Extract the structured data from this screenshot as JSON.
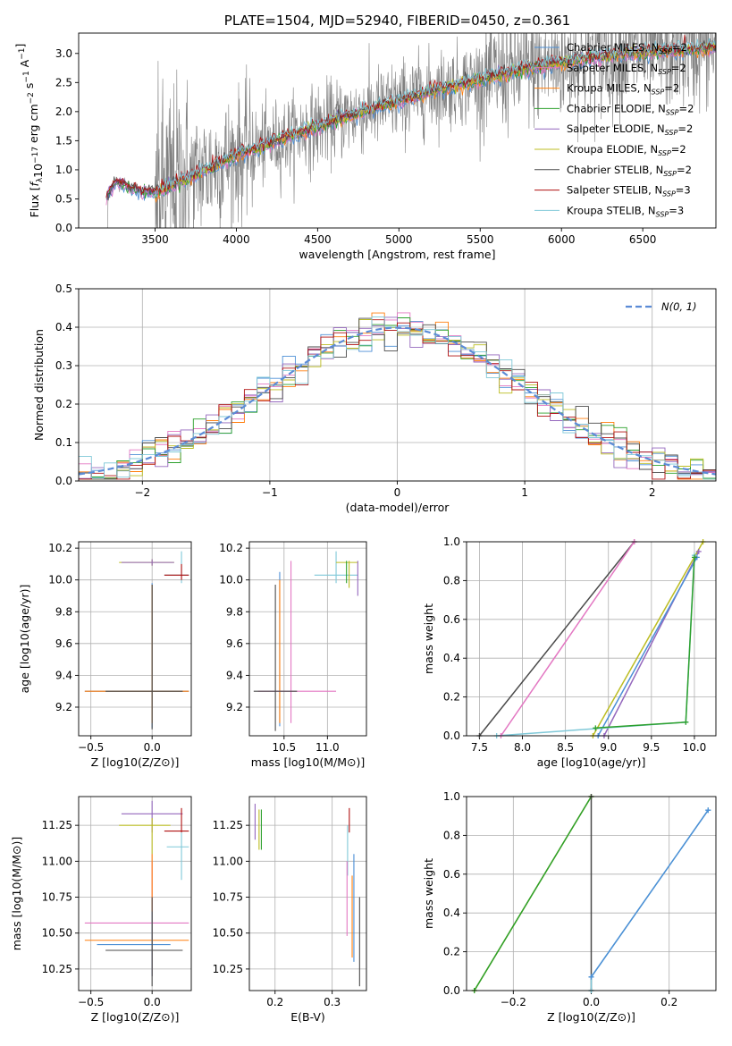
{
  "colors": {
    "Chabrier MILES": "#4c8fd6",
    "Salpeter MILES": "#e377c2",
    "Kroupa MILES": "#ff7f0e",
    "Chabrier ELODIE": "#2ca02c",
    "Salpeter ELODIE": "#9467bd",
    "Kroupa ELODIE": "#bcbd22",
    "Chabrier STELIB": "#4a4a4a",
    "Salpeter STELIB": "#b01010",
    "Kroupa STELIB": "#7fc8d8",
    "spectrum": "#808080",
    "gaussian": "#5b8bd6"
  },
  "chart_data": [
    {
      "id": "spectrum",
      "type": "line",
      "title": "PLATE=1504, MJD=52940, FIBERID=0450, z=0.361",
      "xlabel": "wavelength [Angstrom, rest frame]",
      "ylabel": "Flux [f_λ 10^-17 erg cm^-2 s^-1 A^-1]",
      "xlim": [
        3030,
        6950
      ],
      "ylim": [
        0,
        3.35
      ],
      "xticks": [
        3500,
        4000,
        4500,
        5000,
        5500,
        6000,
        6500
      ],
      "yticks": [
        0.0,
        0.5,
        1.0,
        1.5,
        2.0,
        2.5,
        3.0
      ],
      "grid": false,
      "legend_position": "top-right",
      "series": [
        {
          "name": "Chabrier MILES, N_SSP=2"
        },
        {
          "name": "Salpeter MILES, N_SSP=2"
        },
        {
          "name": "Kroupa MILES, N_SSP=2"
        },
        {
          "name": "Chabrier ELODIE, N_SSP=2"
        },
        {
          "name": "Salpeter ELODIE, N_SSP=2"
        },
        {
          "name": "Kroupa ELODIE, N_SSP=2"
        },
        {
          "name": "Chabrier STELIB, N_SSP=2"
        },
        {
          "name": "Salpeter STELIB, N_SSP=3"
        },
        {
          "name": "Kroupa STELIB, N_SSP=3"
        }
      ],
      "data_trend": {
        "x": [
          3200,
          3260,
          3400,
          3500,
          3700,
          4000,
          4300,
          4600,
          4900,
          5200,
          5500,
          5800,
          6100,
          6400,
          6700,
          6950
        ],
        "y": [
          0.55,
          0.8,
          0.65,
          0.6,
          0.85,
          1.25,
          1.55,
          1.85,
          2.1,
          2.35,
          2.55,
          2.75,
          2.9,
          3.0,
          3.05,
          3.1
        ]
      }
    },
    {
      "id": "residuals",
      "type": "line",
      "xlabel": "(data-model)/error",
      "ylabel": "Normed distribution",
      "xlim": [
        -2.5,
        2.5
      ],
      "ylim": [
        0,
        0.5
      ],
      "xticks": [
        -2,
        -1,
        0,
        1,
        2
      ],
      "yticks": [
        0.0,
        0.1,
        0.2,
        0.3,
        0.4,
        0.5
      ],
      "grid": true,
      "legend_position": "top-right",
      "legend": [
        "N(0, 1)"
      ]
    },
    {
      "id": "age-vs-Z",
      "type": "scatter",
      "xlabel": "Z [log10(Z/Z⊙)]",
      "ylabel": "age [log10(age/yr)]",
      "xlim": [
        -0.6,
        0.32
      ],
      "ylim": [
        9.02,
        10.24
      ],
      "xticks": [
        -0.5,
        0.0
      ],
      "yticks": [
        9.2,
        9.4,
        9.6,
        9.8,
        10.0,
        10.2
      ],
      "grid": true,
      "points": [
        {
          "s": "Chabrier MILES",
          "x": 0.0,
          "y": 9.3,
          "xe": [
            -0.55,
            0.3
          ],
          "ye": [
            9.07,
            9.98
          ]
        },
        {
          "s": "Kroupa MILES",
          "x": 0.0,
          "y": 9.3,
          "xe": [
            -0.55,
            0.3
          ],
          "ye": [
            9.1,
            9.97
          ]
        },
        {
          "s": "Chabrier STELIB",
          "x": 0.0,
          "y": 9.3,
          "xe": [
            -0.38,
            0.25
          ],
          "ye": [
            9.06,
            9.97
          ]
        },
        {
          "s": "Kroupa ELODIE",
          "x": 0.0,
          "y": 10.11,
          "xe": [
            -0.27,
            0.18
          ],
          "ye": [
            10.09,
            10.13
          ]
        },
        {
          "s": "Salpeter ELODIE",
          "x": 0.0,
          "y": 10.11,
          "xe": [
            -0.25,
            0.18
          ],
          "ye": [
            10.09,
            10.13
          ]
        },
        {
          "s": "Kroupa STELIB",
          "x": 0.24,
          "y": 10.03,
          "xe": [
            0.1,
            0.3
          ],
          "ye": [
            9.98,
            10.18
          ]
        },
        {
          "s": "Salpeter STELIB",
          "x": 0.24,
          "y": 10.03,
          "xe": [
            0.1,
            0.3
          ],
          "ye": [
            10.0,
            10.1
          ]
        }
      ]
    },
    {
      "id": "age-vs-mass",
      "type": "scatter",
      "xlabel": "mass [log10(M/M⊙)]",
      "xlim": [
        10.1,
        11.45
      ],
      "ylim": [
        9.02,
        10.24
      ],
      "xticks": [
        10.5,
        11.0
      ],
      "yticks": [
        9.2,
        9.4,
        9.6,
        9.8,
        10.0,
        10.2
      ],
      "grid": true,
      "points": [
        {
          "s": "Chabrier MILES",
          "x": 10.45,
          "y": 9.3,
          "ye": [
            9.08,
            10.05
          ]
        },
        {
          "s": "Kroupa MILES",
          "x": 10.45,
          "y": 9.3,
          "ye": [
            9.1,
            10.0
          ]
        },
        {
          "s": "Salpeter MILES",
          "x": 10.58,
          "y": 9.3,
          "xe": [
            10.2,
            11.1
          ],
          "ye": [
            9.1,
            10.12
          ]
        },
        {
          "s": "Chabrier STELIB",
          "x": 10.4,
          "y": 9.3,
          "xe": [
            10.15,
            10.65
          ],
          "ye": [
            9.05,
            9.97
          ]
        },
        {
          "s": "Kroupa STELIB",
          "x": 11.1,
          "y": 10.03,
          "xe": [
            10.85,
            11.35
          ],
          "ye": [
            9.98,
            10.18
          ]
        },
        {
          "s": "Kroupa ELODIE",
          "x": 11.25,
          "y": 10.11,
          "xe": [
            11.1,
            11.35
          ],
          "ye": [
            9.95,
            10.12
          ]
        },
        {
          "s": "Salpeter ELODIE",
          "x": 11.35,
          "y": 10.11,
          "ye": [
            9.9,
            10.12
          ]
        },
        {
          "s": "Chabrier ELODIE",
          "x": 11.22,
          "y": 10.11,
          "ye": [
            9.98,
            10.12
          ]
        }
      ]
    },
    {
      "id": "mass-weight-vs-age",
      "type": "line",
      "xlabel": "age [log10(age/yr)]",
      "ylabel": "mass weight",
      "xlim": [
        7.35,
        10.25
      ],
      "ylim": [
        0,
        1.0
      ],
      "xticks": [
        7.5,
        8.0,
        8.5,
        9.0,
        9.5,
        10.0
      ],
      "yticks": [
        0.0,
        0.2,
        0.4,
        0.6,
        0.8,
        1.0
      ],
      "grid": true,
      "series": [
        {
          "s": "Chabrier STELIB",
          "x": [
            7.5,
            9.3
          ],
          "y": [
            0.0,
            1.0
          ]
        },
        {
          "s": "Salpeter MILES",
          "x": [
            7.75,
            9.3
          ],
          "y": [
            0.0,
            1.0
          ]
        },
        {
          "s": "Kroupa ELODIE",
          "x": [
            8.82,
            10.1
          ],
          "y": [
            0.0,
            1.0
          ]
        },
        {
          "s": "Salpeter ELODIE",
          "x": [
            8.95,
            10.05
          ],
          "y": [
            0.0,
            0.95
          ]
        },
        {
          "s": "Chabrier MILES",
          "x": [
            8.88,
            10.03
          ],
          "y": [
            0.0,
            0.92
          ]
        },
        {
          "s": "Kroupa STELIB",
          "x": [
            7.7,
            9.9,
            10.0
          ],
          "y": [
            0.0,
            0.07,
            0.93
          ]
        },
        {
          "s": "Chabrier ELODIE",
          "x": [
            8.85,
            9.9,
            10.0
          ],
          "y": [
            0.04,
            0.07,
            0.92
          ]
        }
      ]
    },
    {
      "id": "mass-vs-Z",
      "type": "scatter",
      "xlabel": "Z [log10(Z/Z⊙)]",
      "ylabel": "mass [log10(M/M⊙)]",
      "xlim": [
        -0.6,
        0.32
      ],
      "ylim": [
        10.1,
        11.45
      ],
      "xticks": [
        -0.5,
        0.0
      ],
      "yticks": [
        10.25,
        10.5,
        10.75,
        11.0,
        11.25
      ],
      "grid": true,
      "points": [
        {
          "s": "Salpeter ELODIE",
          "x": 0.0,
          "y": 11.33,
          "xe": [
            -0.25,
            0.25
          ],
          "ye": [
            11.2,
            11.42
          ]
        },
        {
          "s": "Kroupa ELODIE",
          "x": 0.0,
          "y": 11.25,
          "xe": [
            -0.27,
            0.15
          ],
          "ye": [
            11.05,
            11.3
          ]
        },
        {
          "s": "Salpeter STELIB",
          "x": 0.24,
          "y": 11.21,
          "xe": [
            0.1,
            0.3
          ],
          "ye": [
            11.2,
            11.37
          ]
        },
        {
          "s": "Kroupa STELIB",
          "x": 0.24,
          "y": 11.1,
          "xe": [
            0.12,
            0.3
          ],
          "ye": [
            10.87,
            11.2
          ]
        },
        {
          "s": "Salpeter MILES",
          "x": 0.0,
          "y": 10.57,
          "xe": [
            -0.55,
            0.3
          ],
          "ye": [
            10.2,
            11.0
          ]
        },
        {
          "s": "Kroupa MILES",
          "x": 0.0,
          "y": 10.45,
          "xe": [
            -0.55,
            0.3
          ],
          "ye": [
            10.2,
            11.05
          ]
        },
        {
          "s": "Chabrier MILES",
          "x": 0.0,
          "y": 10.42,
          "xe": [
            -0.45,
            0.15
          ],
          "ye": [
            10.2,
            10.65
          ]
        },
        {
          "s": "Chabrier STELIB",
          "x": 0.0,
          "y": 10.38,
          "xe": [
            -0.38,
            0.25
          ],
          "ye": [
            10.13,
            10.75
          ]
        }
      ]
    },
    {
      "id": "mass-vs-EBV",
      "type": "scatter",
      "xlabel": "E(B-V)",
      "xlim": [
        0.155,
        0.36
      ],
      "ylim": [
        10.1,
        11.45
      ],
      "xticks": [
        0.2,
        0.3
      ],
      "yticks": [
        10.25,
        10.5,
        10.75,
        11.0,
        11.25
      ],
      "grid": true,
      "points": [
        {
          "s": "Salpeter ELODIE",
          "x": 0.165,
          "y": 11.3,
          "ye": [
            11.15,
            11.4
          ]
        },
        {
          "s": "Kroupa ELODIE",
          "x": 0.172,
          "y": 11.25,
          "ye": [
            11.08,
            11.36
          ]
        },
        {
          "s": "Chabrier ELODIE",
          "x": 0.176,
          "y": 11.22,
          "ye": [
            11.08,
            11.36
          ]
        },
        {
          "s": "Salpeter STELIB",
          "x": 0.33,
          "y": 11.3,
          "ye": [
            11.2,
            11.37
          ]
        },
        {
          "s": "Kroupa STELIB",
          "x": 0.327,
          "y": 11.15,
          "ye": [
            10.9,
            11.25
          ]
        },
        {
          "s": "Salpeter MILES",
          "x": 0.326,
          "y": 10.8,
          "ye": [
            10.48,
            11.0
          ]
        },
        {
          "s": "Kroupa MILES",
          "x": 0.335,
          "y": 10.7,
          "ye": [
            10.33,
            10.9
          ]
        },
        {
          "s": "Chabrier MILES",
          "x": 0.338,
          "y": 10.65,
          "ye": [
            10.3,
            11.05
          ]
        },
        {
          "s": "Chabrier STELIB",
          "x": 0.348,
          "y": 10.45,
          "ye": [
            10.13,
            10.75
          ]
        }
      ]
    },
    {
      "id": "mass-weight-vs-Z",
      "type": "line",
      "xlabel": "Z [log10(Z/Z⊙)]",
      "ylabel": "mass weight",
      "xlim": [
        -0.32,
        0.32
      ],
      "ylim": [
        0,
        1.0
      ],
      "xticks": [
        -0.2,
        0.0,
        0.2
      ],
      "yticks": [
        0.0,
        0.2,
        0.4,
        0.6,
        0.8,
        1.0
      ],
      "grid": true,
      "series": [
        {
          "s": "Kroupa ELODIE",
          "x": [
            -0.3,
            0.0
          ],
          "y": [
            0.0,
            1.0
          ]
        },
        {
          "s": "Chabrier ELODIE",
          "x": [
            -0.3,
            0.0
          ],
          "y": [
            0.0,
            1.0
          ]
        },
        {
          "s": "Chabrier STELIB",
          "x": [
            0.0,
            0.0
          ],
          "y": [
            0.0,
            1.0
          ]
        },
        {
          "s": "Kroupa STELIB",
          "x": [
            0.0,
            0.0,
            0.3
          ],
          "y": [
            0.0,
            0.07,
            0.93
          ]
        },
        {
          "s": "Chabrier MILES",
          "x": [
            0.0,
            0.3
          ],
          "y": [
            0.07,
            0.93
          ]
        }
      ]
    }
  ]
}
